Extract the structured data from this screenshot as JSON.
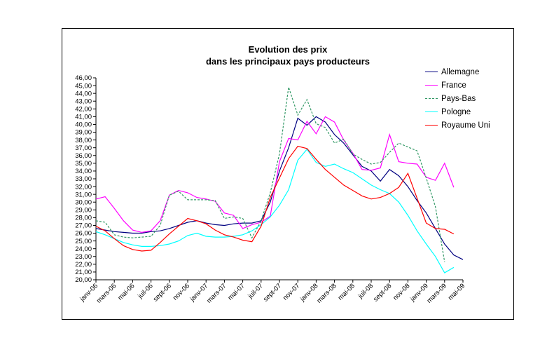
{
  "chart_data": {
    "type": "line",
    "title_line1": "Evolution des prix",
    "title_line2": "dans les principaux pays producteurs",
    "ylim": [
      20,
      46
    ],
    "ytick_step": 1,
    "y_label_format": "comma_2dp",
    "grid": false,
    "legend_position": "right-top",
    "n_points": 41,
    "x_tick_every": 2,
    "x_tick_labels": [
      "janv-06",
      "mars-06",
      "mai-06",
      "juil-06",
      "sept-06",
      "nov-06",
      "janv-07",
      "mars-07",
      "mai-07",
      "juil-07",
      "sept-07",
      "nov-07",
      "janv-08",
      "mars-08",
      "mai-08",
      "juil-08",
      "sept-08",
      "nov-08",
      "janv-09",
      "mars-09",
      "mai-09"
    ],
    "series": [
      {
        "name": "Allemagne",
        "color": "#000080",
        "dash": null,
        "values": [
          26.6,
          26.4,
          26.2,
          26.1,
          26.0,
          26.0,
          26.2,
          26.3,
          26.6,
          27.0,
          27.4,
          27.6,
          27.3,
          27.1,
          27.0,
          27.2,
          27.3,
          27.3,
          27.6,
          30.0,
          34.0,
          37.0,
          40.8,
          39.9,
          41.0,
          40.3,
          38.7,
          37.6,
          36.1,
          34.6,
          34.0,
          32.7,
          34.2,
          33.4,
          32.0,
          30.2,
          28.6,
          26.6,
          24.6,
          23.2,
          22.6
        ]
      },
      {
        "name": "France",
        "color": "#FF00FF",
        "dash": null,
        "values": [
          30.4,
          30.7,
          29.2,
          27.6,
          26.4,
          26.1,
          26.3,
          27.6,
          30.9,
          31.5,
          31.2,
          30.6,
          30.4,
          30.1,
          28.6,
          28.3,
          26.6,
          27.1,
          27.4,
          28.2,
          35.2,
          38.2,
          38.0,
          40.4,
          38.8,
          41.0,
          40.3,
          38.0,
          36.3,
          34.2,
          34.1,
          34.4,
          38.7,
          35.2,
          35.0,
          34.9,
          33.2,
          32.8,
          35.0,
          31.9,
          null
        ]
      },
      {
        "name": "Pays-Bas",
        "color": "#339966",
        "dash": "3,2",
        "values": [
          27.6,
          27.4,
          25.8,
          25.5,
          25.4,
          25.5,
          25.6,
          27.0,
          30.9,
          31.4,
          30.3,
          30.3,
          30.3,
          30.2,
          27.9,
          28.1,
          27.9,
          25.4,
          27.6,
          31.2,
          36.2,
          44.8,
          41.2,
          43.2,
          40.1,
          39.6,
          37.6,
          38.1,
          36.2,
          35.5,
          34.9,
          35.1,
          36.4,
          37.6,
          37.1,
          36.6,
          33.1,
          29.4,
          22.3,
          null,
          null
        ]
      },
      {
        "name": "Pologne",
        "color": "#00FFFF",
        "dash": null,
        "values": [
          26.2,
          25.8,
          25.3,
          24.8,
          24.5,
          24.3,
          24.3,
          24.4,
          24.6,
          25.0,
          25.7,
          26.0,
          25.6,
          25.5,
          25.5,
          25.6,
          25.8,
          26.3,
          27.1,
          28.1,
          29.6,
          31.6,
          35.4,
          36.8,
          35.1,
          34.6,
          34.9,
          34.3,
          33.8,
          33.0,
          32.2,
          31.6,
          31.1,
          30.0,
          28.3,
          26.3,
          24.6,
          23.0,
          20.9,
          21.6,
          null
        ]
      },
      {
        "name": "Royaume Uni",
        "color": "#FF0000",
        "dash": null,
        "values": [
          26.9,
          26.3,
          25.3,
          24.4,
          23.9,
          23.7,
          23.8,
          24.8,
          25.9,
          26.9,
          27.9,
          27.6,
          27.2,
          26.4,
          25.8,
          25.5,
          25.1,
          24.9,
          26.9,
          30.6,
          33.1,
          35.6,
          37.2,
          36.9,
          35.5,
          34.2,
          33.2,
          32.2,
          31.5,
          30.8,
          30.4,
          30.6,
          31.1,
          31.9,
          33.7,
          30.5,
          27.3,
          26.6,
          26.5,
          25.9,
          null
        ]
      }
    ]
  }
}
